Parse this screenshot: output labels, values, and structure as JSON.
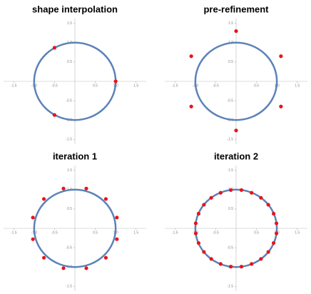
{
  "chart_data": [
    {
      "type": "scatter",
      "title": "shape interpolation",
      "circle_radius": 1,
      "circle_color": "#5b82b7",
      "xlim": [
        -1.75,
        1.75
      ],
      "ylim": [
        -1.55,
        1.55
      ],
      "xticks": [
        -1.5,
        {
          "value": -1,
          "label": "-1.0"
        },
        -0.5,
        0.5,
        {
          "value": 1,
          "label": "1.0"
        },
        1.5
      ],
      "yticks": [
        -1.5,
        {
          "value": -1,
          "label": "-1.0"
        },
        -0.5,
        0.5,
        {
          "value": 1,
          "label": "1.0"
        },
        1.5
      ],
      "series": [
        {
          "color": "#e8141a",
          "x": [
            -0.5,
            1.0,
            -0.5
          ],
          "values": [
            0.87,
            0.0,
            -0.87
          ]
        }
      ]
    },
    {
      "type": "scatter",
      "title": "pre-refinement",
      "circle_radius": 1,
      "circle_color": "#5b82b7",
      "xlim": [
        -1.75,
        1.75
      ],
      "ylim": [
        -1.55,
        1.55
      ],
      "xticks": [
        -1.5,
        {
          "value": -1,
          "label": "-1.0"
        },
        -0.5,
        0.5,
        {
          "value": 1,
          "label": "1.0"
        },
        1.5
      ],
      "yticks": [
        -1.5,
        {
          "value": -1,
          "label": "-1.0"
        },
        -0.5,
        0.5,
        {
          "value": 1,
          "label": "1.0"
        },
        1.5
      ],
      "series": [
        {
          "color": "#e8141a",
          "x": [
            0,
            1.1,
            1.1,
            0,
            -1.1,
            -1.1
          ],
          "values": [
            1.3,
            0.65,
            -0.65,
            -1.27,
            -0.65,
            0.65
          ]
        }
      ]
    },
    {
      "type": "scatter",
      "title": "iteration 1",
      "circle_radius": 1,
      "circle_color": "#5b82b7",
      "xlim": [
        -1.75,
        1.75
      ],
      "ylim": [
        -1.55,
        1.55
      ],
      "xticks": [
        -1.5,
        {
          "value": -1,
          "label": "-1.0"
        },
        -0.5,
        0.5,
        {
          "value": 1,
          "label": "1.0"
        },
        1.5
      ],
      "yticks": [
        -1.5,
        {
          "value": -1,
          "label": "-1.0"
        },
        -0.5,
        0.5,
        {
          "value": 1,
          "label": "1.0"
        },
        1.5
      ],
      "series": [
        {
          "color": "#e8141a",
          "x": [
            1.03,
            0.76,
            0.28,
            -0.28,
            -0.76,
            -1.03,
            -1.03,
            -0.76,
            -0.28,
            0.28,
            0.76,
            1.03
          ],
          "values": [
            0.28,
            0.76,
            1.03,
            1.03,
            0.76,
            0.28,
            -0.28,
            -0.76,
            -1.03,
            -1.03,
            -0.76,
            -0.28
          ]
        }
      ]
    },
    {
      "type": "scatter",
      "title": "iteration 2",
      "circle_radius": 1,
      "circle_color": "#5b82b7",
      "xlim": [
        -1.75,
        1.75
      ],
      "ylim": [
        -1.55,
        1.55
      ],
      "xticks": [
        -1.5,
        {
          "value": -1,
          "label": "-1.0"
        },
        -0.5,
        0.5,
        {
          "value": 1,
          "label": "1.0"
        },
        1.5
      ],
      "yticks": [
        -1.5,
        {
          "value": -1,
          "label": "-1.0"
        },
        -0.5,
        0.5,
        {
          "value": 1,
          "label": "1.0"
        },
        1.5
      ],
      "series": [
        {
          "color": "#e8141a",
          "x": [
            0.99,
            0.92,
            0.79,
            0.61,
            0.38,
            0.13,
            -0.13,
            -0.38,
            -0.61,
            -0.79,
            -0.92,
            -0.99,
            -0.99,
            -0.92,
            -0.79,
            -0.61,
            -0.38,
            -0.13,
            0.13,
            0.38,
            0.61,
            0.79,
            0.92,
            0.99
          ],
          "values": [
            0.13,
            0.38,
            0.61,
            0.79,
            0.92,
            0.99,
            0.99,
            0.92,
            0.79,
            0.61,
            0.38,
            0.13,
            -0.13,
            -0.38,
            -0.61,
            -0.79,
            -0.92,
            -0.99,
            -0.99,
            -0.92,
            -0.79,
            -0.61,
            -0.38,
            -0.13
          ]
        }
      ]
    }
  ]
}
